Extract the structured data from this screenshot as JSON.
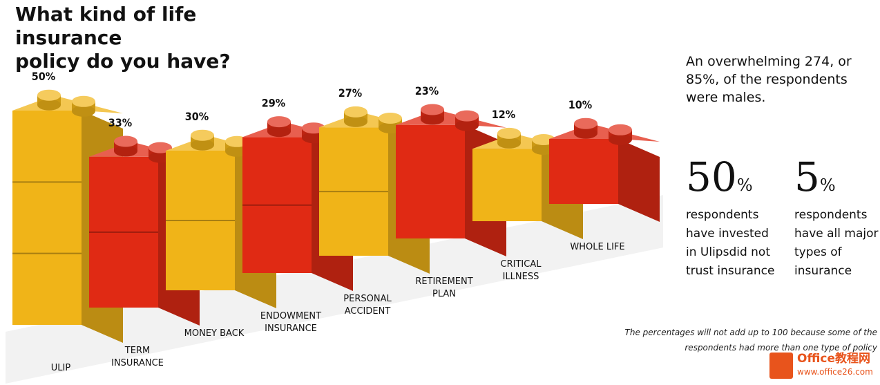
{
  "title_line1": "What kind of life insurance",
  "title_line2": "policy do you have?",
  "chart_data": {
    "type": "bar",
    "title": "What kind of life insurance policy do you have?",
    "categories": [
      "ULIP",
      "TERM INSURANCE",
      "MONEY BACK",
      "ENDOWMENT INSURANCE",
      "PERSONAL ACCIDENT",
      "RETIREMENT PLAN",
      "CRITICAL ILLNESS",
      "WHOLE LIFE"
    ],
    "category_lines": [
      [
        "ULIP"
      ],
      [
        "TERM",
        "INSURANCE"
      ],
      [
        "MONEY BACK"
      ],
      [
        "ENDOWMENT",
        "INSURANCE"
      ],
      [
        "PERSONAL",
        "ACCIDENT"
      ],
      [
        "RETIREMENT",
        "PLAN"
      ],
      [
        "CRITICAL",
        "ILLNESS"
      ],
      [
        "WHOLE LIFE"
      ]
    ],
    "values": [
      50,
      33,
      30,
      29,
      27,
      23,
      12,
      10
    ],
    "value_labels": [
      "50%",
      "33%",
      "30%",
      "29%",
      "27%",
      "23%",
      "12%",
      "10%"
    ],
    "unit": "%",
    "bar_colors": [
      "#f0b418",
      "#e02a14",
      "#f0b418",
      "#e02a14",
      "#f0b418",
      "#e02a14",
      "#f0b418",
      "#e02a14"
    ],
    "style": "stacked toy bricks"
  },
  "sidebar": {
    "intro_lines": [
      "An overwhelming 274, or",
      "85%, of the respondents",
      "were males."
    ],
    "stat1": {
      "number": "50",
      "unit": "%",
      "desc_lines": [
        "respondents",
        "have invested",
        "in Ulipsdid not",
        "trust insurance"
      ]
    },
    "stat2": {
      "number": "5",
      "unit": "%",
      "desc_lines": [
        "respondents",
        "have all major",
        "types of",
        "insurance"
      ]
    }
  },
  "footnote_lines": [
    "The percentages will not add up to 100 because some of the",
    "respondents had more than one type of policy"
  ],
  "watermark": {
    "name": "Office教程网",
    "url": "www.office26.com"
  },
  "colors": {
    "yellow": "#f0b418",
    "red": "#e02a14",
    "brand": "#e8541c"
  }
}
